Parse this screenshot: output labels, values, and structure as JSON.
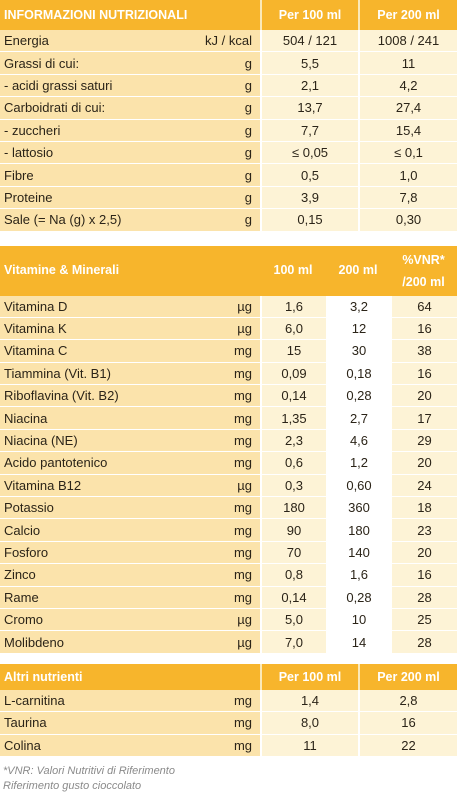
{
  "nutrition": {
    "header": {
      "title": "INFORMAZIONI NUTRIZIONALI",
      "col1": "Per 100 ml",
      "col2": "Per 200 ml"
    },
    "rows": [
      {
        "name": "Energia",
        "unit": "kJ / kcal",
        "v100": "504 / 121",
        "v200": "1008 / 241"
      },
      {
        "name": "Grassi di cui:",
        "unit": "g",
        "v100": "5,5",
        "v200": "11"
      },
      {
        "name": " - acidi grassi saturi",
        "unit": "g",
        "v100": "2,1",
        "v200": "4,2"
      },
      {
        "name": "Carboidrati di cui:",
        "unit": "g",
        "v100": "13,7",
        "v200": "27,4"
      },
      {
        "name": " - zuccheri",
        "unit": "g",
        "v100": "7,7",
        "v200": "15,4"
      },
      {
        "name": " - lattosio",
        "unit": "g",
        "v100": "≤ 0,05",
        "v200": "≤  0,1"
      },
      {
        "name": "Fibre",
        "unit": "g",
        "v100": "0,5",
        "v200": "1,0"
      },
      {
        "name": "Proteine",
        "unit": "g",
        "v100": "3,9",
        "v200": "7,8"
      },
      {
        "name": "Sale (= Na (g) x 2,5)",
        "unit": "g",
        "v100": "0,15",
        "v200": "0,30"
      }
    ]
  },
  "vitamins": {
    "header": {
      "title": "Vitamine & Minerali",
      "col1": "100 ml",
      "col2": "200 ml",
      "col3_line1": "%VNR*",
      "col3_line2": "/200 ml"
    },
    "rows": [
      {
        "name": "Vitamina D",
        "unit": "µg",
        "v100": "1,6",
        "v200": "3,2",
        "vnr": "64"
      },
      {
        "name": "Vitamina K",
        "unit": "µg",
        "v100": "6,0",
        "v200": "12",
        "vnr": "16"
      },
      {
        "name": "Vitamina C",
        "unit": "mg",
        "v100": "15",
        "v200": "30",
        "vnr": "38"
      },
      {
        "name": "Tiammina (Vit. B1)",
        "unit": "mg",
        "v100": "0,09",
        "v200": "0,18",
        "vnr": "16"
      },
      {
        "name": "Riboflavina (Vit. B2)",
        "unit": "mg",
        "v100": "0,14",
        "v200": "0,28",
        "vnr": "20"
      },
      {
        "name": "Niacina",
        "unit": "mg",
        "v100": "1,35",
        "v200": "2,7",
        "vnr": "17"
      },
      {
        "name": "Niacina (NE)",
        "unit": "mg",
        "v100": "2,3",
        "v200": "4,6",
        "vnr": "29"
      },
      {
        "name": "Acido pantotenico",
        "unit": "mg",
        "v100": "0,6",
        "v200": "1,2",
        "vnr": "20"
      },
      {
        "name": "Vitamina B12",
        "unit": "µg",
        "v100": "0,3",
        "v200": "0,60",
        "vnr": "24"
      },
      {
        "name": "Potassio",
        "unit": "mg",
        "v100": "180",
        "v200": "360",
        "vnr": "18"
      },
      {
        "name": "Calcio",
        "unit": "mg",
        "v100": "90",
        "v200": "180",
        "vnr": "23"
      },
      {
        "name": "Fosforo",
        "unit": "mg",
        "v100": "70",
        "v200": "140",
        "vnr": "20"
      },
      {
        "name": "Zinco",
        "unit": "mg",
        "v100": "0,8",
        "v200": "1,6",
        "vnr": "16"
      },
      {
        "name": "Rame",
        "unit": "mg",
        "v100": "0,14",
        "v200": "0,28",
        "vnr": "28"
      },
      {
        "name": "Cromo",
        "unit": "µg",
        "v100": "5,0",
        "v200": "10",
        "vnr": "25"
      },
      {
        "name": "Molibdeno",
        "unit": "µg",
        "v100": "7,0",
        "v200": "14",
        "vnr": "28"
      }
    ]
  },
  "others": {
    "header": {
      "title": "Altri nutrienti",
      "col1": "Per 100 ml",
      "col2": "Per 200 ml"
    },
    "rows": [
      {
        "name": "L-carnitina",
        "unit": "mg",
        "v100": "1,4",
        "v200": "2,8"
      },
      {
        "name": "Taurina",
        "unit": "mg",
        "v100": "8,0",
        "v200": "16"
      },
      {
        "name": "Colina",
        "unit": "mg",
        "v100": "11",
        "v200": "22"
      }
    ]
  },
  "footnotes": {
    "line1": "*VNR: Valori Nutritivi di Riferimento",
    "line2": "Riferimento gusto cioccolato"
  },
  "colors": {
    "header": "#f7b52c",
    "label_cell": "#fbe3ab",
    "value_cell": "#fdf3d6"
  }
}
